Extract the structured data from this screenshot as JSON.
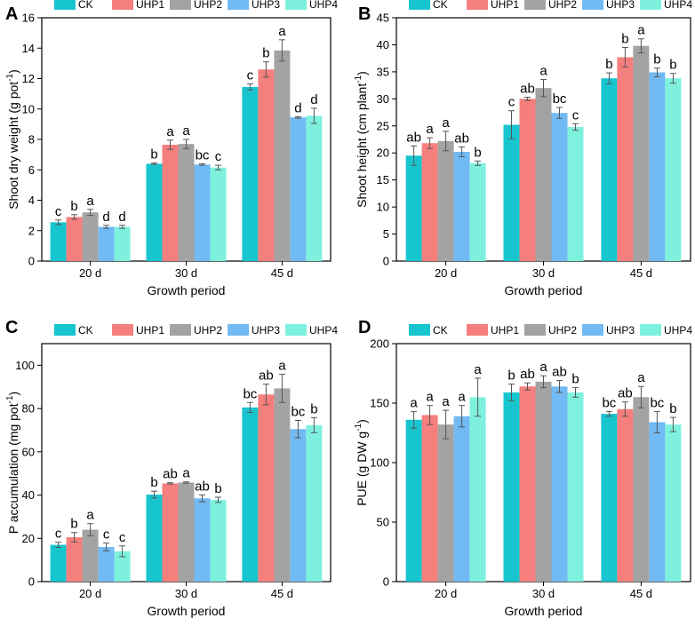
{
  "chart_data": [
    {
      "panel_label": "A",
      "type": "bar",
      "categories": [
        "20 d",
        "30 d",
        "45 d"
      ],
      "xlabel": "Growth period",
      "ylabel": "Shoot dry weight (g pot",
      "ylabel_sup": "-1",
      "ylabel_end": ")",
      "ylim": [
        0,
        16
      ],
      "yticks": [
        0,
        2,
        4,
        6,
        8,
        10,
        12,
        14,
        16
      ],
      "legend": "top",
      "series": [
        {
          "name": "CK",
          "color": "#17c5cf",
          "values": [
            2.55,
            6.4,
            11.45
          ],
          "errors": [
            0.15,
            0.05,
            0.2
          ],
          "letters": [
            "c",
            "b",
            "c"
          ]
        },
        {
          "name": "UHP1",
          "color": "#f57f7d",
          "values": [
            2.9,
            7.65,
            12.6
          ],
          "errors": [
            0.15,
            0.3,
            0.5
          ],
          "letters": [
            "b",
            "a",
            "b"
          ]
        },
        {
          "name": "UHP2",
          "color": "#a3a3a3",
          "values": [
            3.2,
            7.7,
            13.85
          ],
          "errors": [
            0.2,
            0.3,
            0.7
          ],
          "letters": [
            "a",
            "a",
            "a"
          ]
        },
        {
          "name": "UHP3",
          "color": "#72baf3",
          "values": [
            2.25,
            6.35,
            9.45
          ],
          "errors": [
            0.1,
            0.05,
            0.05
          ],
          "letters": [
            "d",
            "bc",
            "d"
          ]
        },
        {
          "name": "UHP4",
          "color": "#7ef1de",
          "values": [
            2.25,
            6.15,
            9.55
          ],
          "errors": [
            0.1,
            0.15,
            0.5
          ],
          "letters": [
            "d",
            "c",
            "d"
          ]
        }
      ]
    },
    {
      "panel_label": "B",
      "type": "bar",
      "categories": [
        "20 d",
        "30 d",
        "45 d"
      ],
      "xlabel": "Growth period",
      "ylabel": "Shoot height (cm plant",
      "ylabel_sup": "-1",
      "ylabel_end": ")",
      "ylim": [
        0,
        45
      ],
      "yticks": [
        0,
        5,
        10,
        15,
        20,
        25,
        30,
        35,
        40,
        45
      ],
      "legend": "top",
      "series": [
        {
          "name": "CK",
          "color": "#17c5cf",
          "values": [
            19.5,
            25.2,
            33.8
          ],
          "errors": [
            1.8,
            2.6,
            1.0
          ],
          "letters": [
            "ab",
            "c",
            "b"
          ]
        },
        {
          "name": "UHP1",
          "color": "#f57f7d",
          "values": [
            21.8,
            30.0,
            37.7
          ],
          "errors": [
            1.0,
            0.3,
            1.8
          ],
          "letters": [
            "a",
            "ab",
            "b"
          ]
        },
        {
          "name": "UHP2",
          "color": "#a3a3a3",
          "values": [
            22.2,
            32.0,
            39.8
          ],
          "errors": [
            1.8,
            1.6,
            1.3
          ],
          "letters": [
            "a",
            "a",
            "a"
          ]
        },
        {
          "name": "UHP3",
          "color": "#72baf3",
          "values": [
            20.2,
            27.4,
            34.9
          ],
          "errors": [
            0.9,
            1.0,
            0.8
          ],
          "letters": [
            "ab",
            "bc",
            "b"
          ]
        },
        {
          "name": "UHP4",
          "color": "#7ef1de",
          "values": [
            18.1,
            24.8,
            33.8
          ],
          "errors": [
            0.4,
            0.6,
            0.9
          ],
          "letters": [
            "b",
            "c",
            "b"
          ]
        }
      ]
    },
    {
      "panel_label": "C",
      "type": "bar",
      "categories": [
        "20 d",
        "30 d",
        "45 d"
      ],
      "xlabel": "Growth period",
      "ylabel": "P accumulation (mg pot",
      "ylabel_sup": "-1",
      "ylabel_end": ")",
      "ylim": [
        0,
        110
      ],
      "yticks": [
        0,
        20,
        40,
        60,
        80,
        100
      ],
      "legend": "top",
      "series": [
        {
          "name": "CK",
          "color": "#17c5cf",
          "values": [
            17.0,
            40.2,
            80.5
          ],
          "errors": [
            1.2,
            1.6,
            2.3
          ],
          "letters": [
            "c",
            "b",
            "bc"
          ]
        },
        {
          "name": "UHP1",
          "color": "#f57f7d",
          "values": [
            20.5,
            45.4,
            86.5
          ],
          "errors": [
            2.2,
            0.3,
            4.8
          ],
          "letters": [
            "b",
            "ab",
            "ab"
          ]
        },
        {
          "name": "UHP2",
          "color": "#a3a3a3",
          "values": [
            24.0,
            45.8,
            89.3
          ],
          "errors": [
            2.8,
            0.3,
            6.5
          ],
          "letters": [
            "a",
            "a",
            "a"
          ]
        },
        {
          "name": "UHP3",
          "color": "#72baf3",
          "values": [
            16.0,
            38.5,
            70.5
          ],
          "errors": [
            1.8,
            1.6,
            4.0
          ],
          "letters": [
            "c",
            "ab",
            "bc"
          ]
        },
        {
          "name": "UHP4",
          "color": "#7ef1de",
          "values": [
            14.0,
            37.8,
            72.3
          ],
          "errors": [
            2.5,
            1.2,
            3.5
          ],
          "letters": [
            "c",
            "b",
            "b"
          ]
        }
      ]
    },
    {
      "panel_label": "D",
      "type": "bar",
      "categories": [
        "20 d",
        "30 d",
        "45 d"
      ],
      "xlabel": "Growth period",
      "ylabel": "PUE (g DW g",
      "ylabel_sup": "-1",
      "ylabel_end": ")",
      "ylim": [
        0,
        200
      ],
      "yticks": [
        0,
        50,
        100,
        150,
        200
      ],
      "legend": "top",
      "series": [
        {
          "name": "CK",
          "color": "#17c5cf",
          "values": [
            136,
            159,
            141
          ],
          "errors": [
            7,
            7,
            2
          ],
          "letters": [
            "a",
            "b",
            "bc"
          ]
        },
        {
          "name": "UHP1",
          "color": "#f57f7d",
          "values": [
            140,
            164,
            145
          ],
          "errors": [
            8,
            3,
            6
          ],
          "letters": [
            "a",
            "ab",
            "ab"
          ]
        },
        {
          "name": "UHP2",
          "color": "#a3a3a3",
          "values": [
            132,
            168,
            155
          ],
          "errors": [
            12,
            5,
            9
          ],
          "letters": [
            "a",
            "a",
            "a"
          ]
        },
        {
          "name": "UHP3",
          "color": "#72baf3",
          "values": [
            139,
            164,
            134
          ],
          "errors": [
            9,
            5,
            9
          ],
          "letters": [
            "a",
            "ab",
            "bc"
          ]
        },
        {
          "name": "UHP4",
          "color": "#7ef1de",
          "values": [
            155,
            159,
            132
          ],
          "errors": [
            16,
            4,
            6
          ],
          "letters": [
            "a",
            "b",
            "b"
          ]
        }
      ]
    }
  ]
}
